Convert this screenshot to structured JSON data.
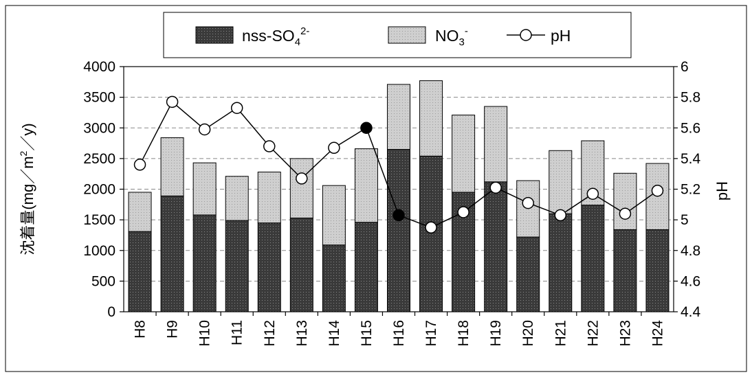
{
  "chart_data": {
    "type": "bar",
    "stacked": true,
    "categories": [
      "H8",
      "H9",
      "H10",
      "H11",
      "H12",
      "H13",
      "H14",
      "H15",
      "H16",
      "H17",
      "H18",
      "H19",
      "H20",
      "H21",
      "H22",
      "H23",
      "H24"
    ],
    "series": [
      {
        "name": "nss-SO",
        "sub": "4",
        "sup": "2-",
        "color": "#3a3a3a",
        "values": [
          1310,
          1890,
          1580,
          1490,
          1450,
          1530,
          1090,
          1460,
          2650,
          2540,
          1950,
          2120,
          1220,
          1600,
          1740,
          1340,
          1340
        ]
      },
      {
        "name": "NO",
        "sub": "3",
        "sup": "-",
        "color": "#c8c8c8",
        "values": [
          640,
          950,
          850,
          720,
          830,
          970,
          970,
          1200,
          1060,
          1230,
          1260,
          1230,
          920,
          1030,
          1050,
          920,
          1080
        ]
      }
    ],
    "line_series": {
      "name": "pH",
      "axis": "right",
      "values": [
        5.36,
        5.77,
        5.59,
        5.73,
        5.48,
        5.27,
        5.47,
        5.6,
        5.03,
        4.95,
        5.05,
        5.21,
        5.11,
        5.03,
        5.17,
        5.04,
        5.19
      ],
      "filled_points": [
        7,
        8
      ]
    },
    "ylabel": "沈着量(mg／m",
    "ylabel_sup": "2",
    "ylabel_end": "／y)",
    "y2label": "pH",
    "ylim": [
      0,
      4000
    ],
    "yticks": [
      "0",
      "500",
      "1000",
      "1500",
      "2000",
      "2500",
      "3000",
      "3500",
      "4000"
    ],
    "y2lim": [
      4.4,
      6.0
    ],
    "y2ticks": [
      "4.4",
      "4.6",
      "4.8",
      "5",
      "5.2",
      "5.4",
      "5.6",
      "5.8",
      "6"
    ],
    "grid": "horizontal dashed",
    "legend_position": "top"
  }
}
